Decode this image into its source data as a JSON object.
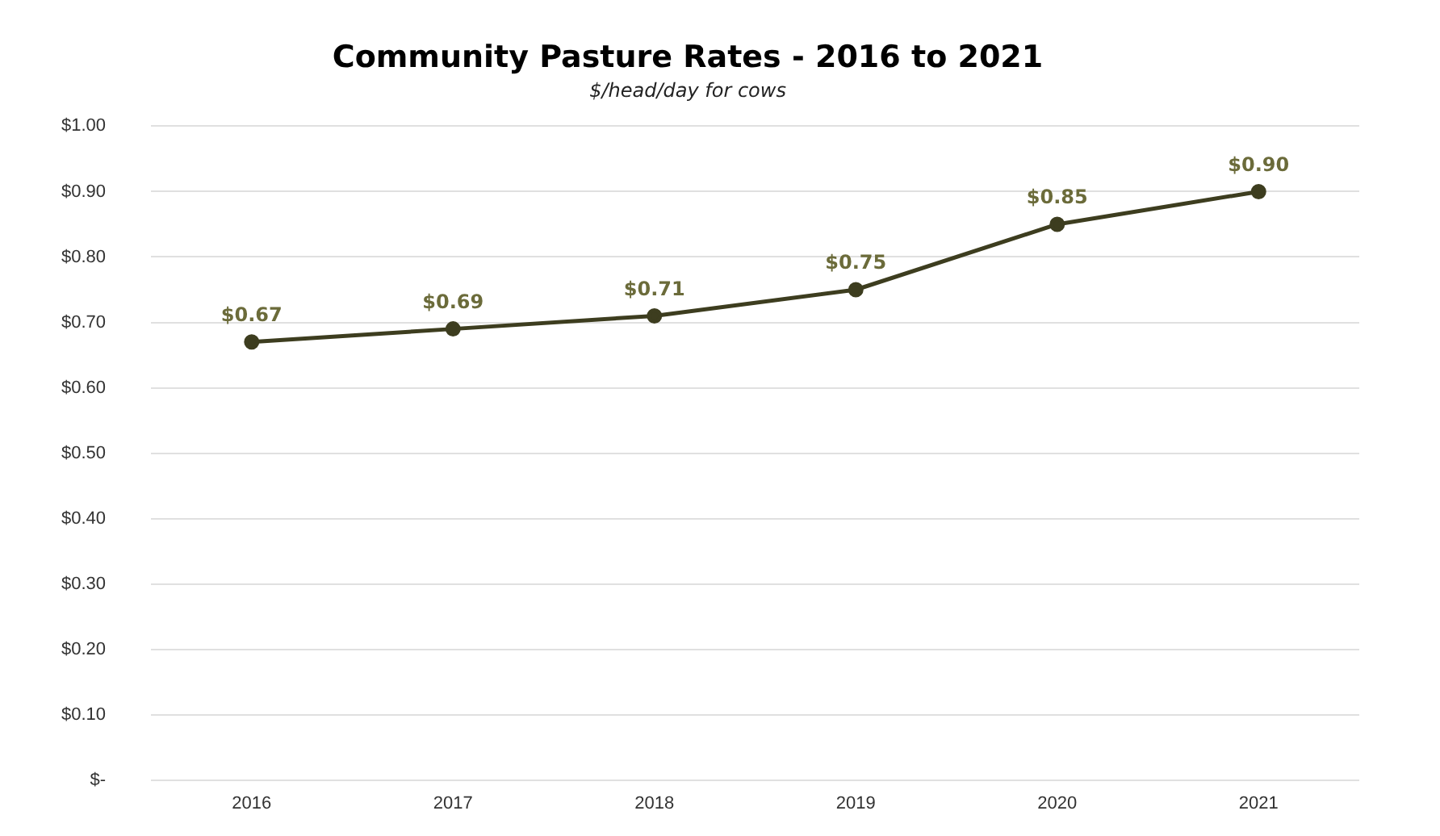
{
  "chart_data": {
    "type": "line",
    "title": "Community Pasture Rates - 2016 to 2021",
    "subtitle": "$/head/day for cows",
    "categories": [
      "2016",
      "2017",
      "2018",
      "2019",
      "2020",
      "2021"
    ],
    "series": [
      {
        "color": "#3d3d1f",
        "values": [
          0.67,
          0.69,
          0.71,
          0.75,
          0.85,
          0.9
        ]
      }
    ],
    "value_labels": [
      "$0.67",
      "$0.69",
      "$0.71",
      "$0.75",
      "$0.85",
      "$0.90"
    ],
    "ylim": [
      0,
      1
    ],
    "yticks": [
      {
        "value": 0,
        "label": "$-"
      },
      {
        "value": 0.1,
        "label": "$0.10"
      },
      {
        "value": 0.2,
        "label": "$0.20"
      },
      {
        "value": 0.3,
        "label": "$0.30"
      },
      {
        "value": 0.4,
        "label": "$0.40"
      },
      {
        "value": 0.5,
        "label": "$0.50"
      },
      {
        "value": 0.6,
        "label": "$0.60"
      },
      {
        "value": 0.7,
        "label": "$0.70"
      },
      {
        "value": 0.8,
        "label": "$0.80"
      },
      {
        "value": 0.9,
        "label": "$0.90"
      },
      {
        "value": 1,
        "label": "$1.00"
      }
    ],
    "grid": "y",
    "legend": false,
    "marker": "circle",
    "line_style": "solid"
  }
}
